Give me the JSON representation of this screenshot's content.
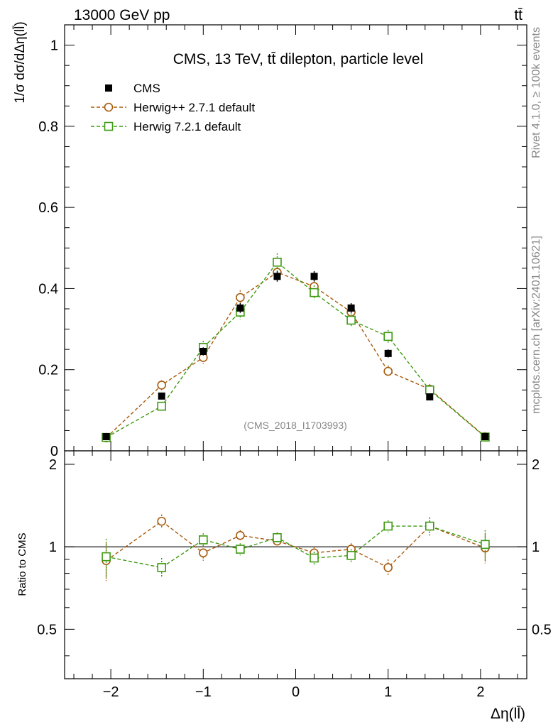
{
  "header": {
    "left_label": "13000 GeV pp",
    "right_label": "tt̄"
  },
  "side_labels": {
    "rivet": "Rivet 4.1.0, ≥ 100k events",
    "source": "mcplots.cern.ch [arXiv:2401.10621]"
  },
  "chart_data": {
    "type": "scatter",
    "title": "CMS, 13 TeV, tt̄ dilepton, particle level",
    "watermark": "(CMS_2018_I1703993)",
    "xlabel": "Δη(ll̄)",
    "ylabel": "1/σ dσ/dΔη(ll̄)",
    "ratio_ylabel": "Ratio to CMS",
    "xlim": [
      -2.5,
      2.5
    ],
    "ylim": [
      0,
      1.05
    ],
    "ratio_ylim": [
      0.33,
      2.24
    ],
    "x_ticks": [
      {
        "value": -2,
        "label": "−2"
      },
      {
        "value": -1,
        "label": "−1"
      },
      {
        "value": 0,
        "label": "0"
      },
      {
        "value": 1,
        "label": "1"
      },
      {
        "value": 2,
        "label": "2"
      }
    ],
    "y_ticks": [
      {
        "value": 0,
        "label": "0"
      },
      {
        "value": 0.2,
        "label": "0.2"
      },
      {
        "value": 0.4,
        "label": "0.4"
      },
      {
        "value": 0.6,
        "label": "0.6"
      },
      {
        "value": 0.8,
        "label": "0.8"
      },
      {
        "value": 1.0,
        "label": "1"
      }
    ],
    "ratio_ticks": [
      {
        "value": 0.5,
        "label": "0.5"
      },
      {
        "value": 1,
        "label": "1"
      },
      {
        "value": 2,
        "label": "2"
      }
    ],
    "x": [
      -2.05,
      -1.45,
      -1.0,
      -0.6,
      -0.2,
      0.2,
      0.6,
      1.0,
      1.45,
      2.05
    ],
    "series": [
      {
        "name": "CMS",
        "style": "data",
        "color": "#000000",
        "values": [
          0.035,
          0.135,
          0.245,
          0.352,
          0.43,
          0.43,
          0.352,
          0.24,
          0.133,
          0.035
        ],
        "errors": [
          0.003,
          0.008,
          0.01,
          0.012,
          0.013,
          0.013,
          0.012,
          0.01,
          0.008,
          0.003
        ],
        "ratio": [
          1,
          1,
          1,
          1,
          1,
          1,
          1,
          1,
          1,
          1
        ],
        "ratio_errors": [
          0.1,
          0.08,
          0.05,
          0.04,
          0.04,
          0.04,
          0.04,
          0.05,
          0.08,
          0.1
        ]
      },
      {
        "name": "Herwig++ 2.7.1 default",
        "style": "circle",
        "color": "#a85a0d",
        "values": [
          0.032,
          0.162,
          0.23,
          0.378,
          0.44,
          0.405,
          0.342,
          0.196,
          0.152,
          0.035
        ],
        "errors": [
          0.004,
          0.012,
          0.015,
          0.018,
          0.02,
          0.018,
          0.017,
          0.014,
          0.012,
          0.004
        ],
        "ratio": [
          0.89,
          1.24,
          0.95,
          1.1,
          1.05,
          0.95,
          0.98,
          0.84,
          1.19,
          0.99
        ],
        "ratio_errors": [
          0.14,
          0.07,
          0.06,
          0.05,
          0.05,
          0.05,
          0.05,
          0.06,
          0.09,
          0.12
        ]
      },
      {
        "name": "Herwig 7.2.1 default",
        "style": "square",
        "color": "#3d9a12",
        "values": [
          0.033,
          0.11,
          0.255,
          0.342,
          0.465,
          0.39,
          0.322,
          0.282,
          0.15,
          0.034
        ],
        "errors": [
          0.004,
          0.01,
          0.016,
          0.018,
          0.022,
          0.018,
          0.017,
          0.016,
          0.012,
          0.004
        ],
        "ratio": [
          0.92,
          0.84,
          1.06,
          0.98,
          1.08,
          0.91,
          0.93,
          1.19,
          1.19,
          1.02
        ],
        "ratio_errors": [
          0.15,
          0.07,
          0.06,
          0.05,
          0.05,
          0.05,
          0.05,
          0.06,
          0.09,
          0.13
        ]
      }
    ]
  }
}
